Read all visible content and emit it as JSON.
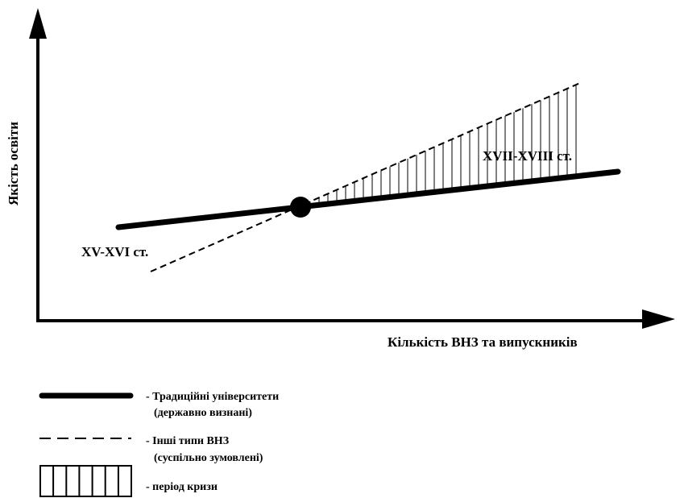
{
  "axes": {
    "y_label": "Якість освіти",
    "x_label": "Кількість ВНЗ та випускників"
  },
  "labels": {
    "early_period": "XV-XVI ст.",
    "late_period": "XVII-XVIII ст."
  },
  "legend": {
    "traditional_line1": "- Традиційні університети",
    "traditional_line2": "(державно визнані)",
    "other_line1": "- Інші типи ВНЗ",
    "other_line2": "(суспільно зумовлені)",
    "crisis": "- період кризи"
  },
  "colors": {
    "ink": "#000000",
    "background": "#ffffff"
  }
}
